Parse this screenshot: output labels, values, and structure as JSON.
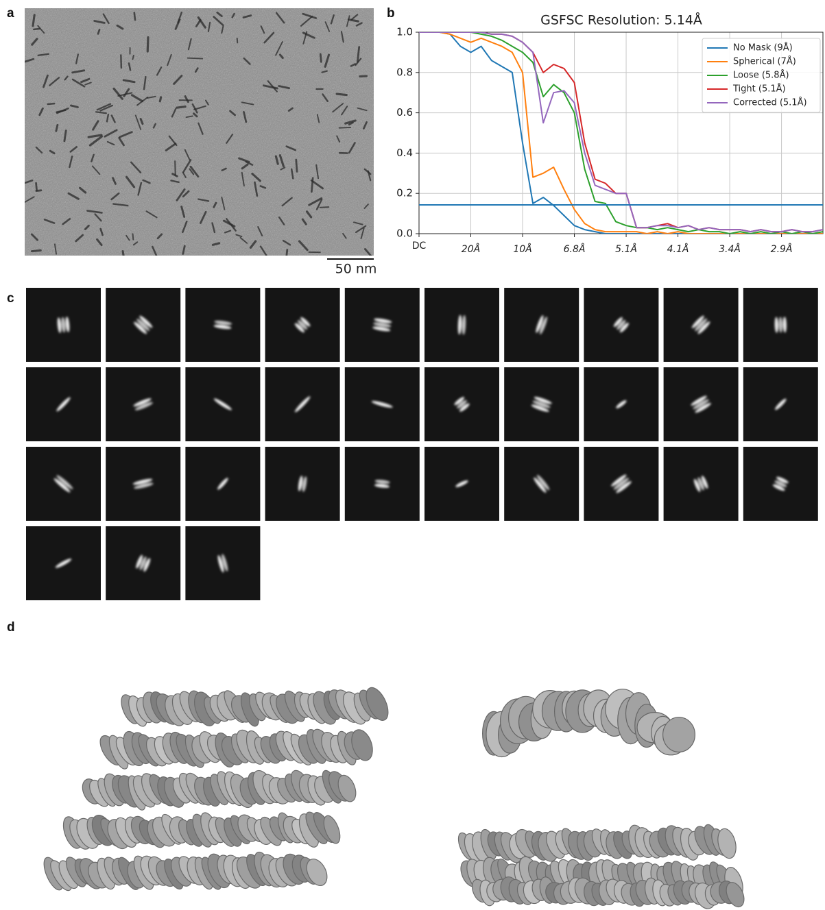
{
  "labels": [
    "a",
    "b",
    "c",
    "d"
  ],
  "scale_bar": "50 nm",
  "chart_data": {
    "type": "line",
    "title": "GSFSC Resolution: 5.14Å",
    "x": [
      0,
      0.01,
      0.02,
      0.03,
      0.04,
      0.05,
      0.06,
      0.07,
      0.08,
      0.09,
      0.1,
      0.11,
      0.12,
      0.13,
      0.14,
      0.15,
      0.16,
      0.17,
      0.18,
      0.19,
      0.2,
      0.21,
      0.22,
      0.23,
      0.24,
      0.25,
      0.26,
      0.27,
      0.28,
      0.29,
      0.3,
      0.31,
      0.32,
      0.33,
      0.34,
      0.35,
      0.36,
      0.37,
      0.38,
      0.39
    ],
    "series": [
      {
        "name": "No Mask (9Å)",
        "color": "#1f77b4",
        "values": [
          1,
          1,
          1,
          0.99,
          0.93,
          0.9,
          0.93,
          0.86,
          0.83,
          0.8,
          0.45,
          0.15,
          0.18,
          0.14,
          0.09,
          0.04,
          0.02,
          0.01,
          0,
          0,
          0,
          0,
          0,
          0,
          0,
          0,
          0,
          0,
          0,
          0,
          0,
          0,
          0,
          0,
          0,
          0,
          0,
          0,
          0,
          0
        ]
      },
      {
        "name": "Spherical (7Å)",
        "color": "#ff7f0e",
        "values": [
          1,
          1,
          1,
          0.99,
          0.97,
          0.95,
          0.97,
          0.95,
          0.93,
          0.9,
          0.8,
          0.28,
          0.3,
          0.33,
          0.22,
          0.12,
          0.05,
          0.02,
          0.01,
          0.01,
          0.01,
          0.01,
          0,
          0.01,
          0,
          0.01,
          0,
          0,
          0,
          0,
          0,
          0,
          0,
          0,
          0,
          0,
          0,
          0,
          0,
          0
        ]
      },
      {
        "name": "Loose (5.8Å)",
        "color": "#2ca02c",
        "values": [
          1,
          1,
          1,
          1,
          1,
          1,
          0.99,
          0.98,
          0.96,
          0.93,
          0.9,
          0.85,
          0.68,
          0.74,
          0.7,
          0.6,
          0.32,
          0.16,
          0.15,
          0.06,
          0.04,
          0.03,
          0.03,
          0.02,
          0.03,
          0.02,
          0.01,
          0.02,
          0.01,
          0.01,
          0,
          0.01,
          0,
          0.01,
          0,
          0.01,
          0,
          0.01,
          0,
          0.01
        ]
      },
      {
        "name": "Tight (5.1Å)",
        "color": "#d62728",
        "values": [
          1,
          1,
          1,
          1,
          1,
          1,
          1,
          0.99,
          0.99,
          0.98,
          0.95,
          0.9,
          0.8,
          0.84,
          0.82,
          0.75,
          0.45,
          0.27,
          0.25,
          0.2,
          0.2,
          0.03,
          0.03,
          0.04,
          0.05,
          0.03,
          0.04,
          0.02,
          0.03,
          0.02,
          0.02,
          0.02,
          0.01,
          0.02,
          0.01,
          0.01,
          0.02,
          0.01,
          0.01,
          0.02
        ]
      },
      {
        "name": "Corrected (5.1Å)",
        "color": "#9467bd",
        "values": [
          1,
          1,
          1,
          1,
          1,
          1,
          1,
          0.99,
          0.99,
          0.98,
          0.95,
          0.9,
          0.55,
          0.7,
          0.71,
          0.65,
          0.4,
          0.24,
          0.22,
          0.2,
          0.2,
          0.03,
          0.03,
          0.04,
          0.04,
          0.03,
          0.04,
          0.02,
          0.03,
          0.02,
          0.02,
          0.02,
          0.01,
          0.02,
          0.01,
          0.01,
          0.02,
          0.01,
          0.01,
          0.02
        ]
      }
    ],
    "threshold": 0.143,
    "threshold_color": "#1f77b4",
    "xlim": [
      0,
      0.39
    ],
    "xticks": [
      {
        "value": 0,
        "label": "DC"
      },
      {
        "value": 0.05,
        "label": "20Å"
      },
      {
        "value": 0.1,
        "label": "10Å"
      },
      {
        "value": 0.15,
        "label": "6.8Å"
      },
      {
        "value": 0.2,
        "label": "5.1Å"
      },
      {
        "value": 0.25,
        "label": "4.1Å"
      },
      {
        "value": 0.3,
        "label": "3.4Å"
      },
      {
        "value": 0.35,
        "label": "2.9Å"
      }
    ],
    "ylim": [
      0,
      1
    ],
    "yticks": [
      {
        "value": 0,
        "label": "0.0"
      },
      {
        "value": 0.2,
        "label": "0.2"
      },
      {
        "value": 0.4,
        "label": "0.4"
      },
      {
        "value": 0.6,
        "label": "0.6"
      },
      {
        "value": 0.8,
        "label": "0.8"
      },
      {
        "value": 1,
        "label": "1.0"
      }
    ],
    "grid": true,
    "legend": "upper right"
  }
}
